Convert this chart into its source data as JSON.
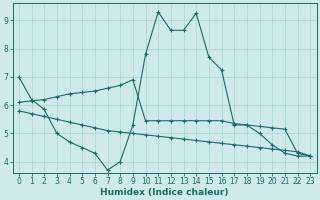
{
  "title": "",
  "xlabel": "Humidex (Indice chaleur)",
  "ylabel": "",
  "bg_color": "#ceeaea",
  "line_color": "#1a6b6b",
  "grid_color": "#b0d8d8",
  "xlim": [
    -0.5,
    23.5
  ],
  "ylim": [
    3.6,
    9.6
  ],
  "xticks": [
    0,
    1,
    2,
    3,
    4,
    5,
    6,
    7,
    8,
    9,
    10,
    11,
    12,
    13,
    14,
    15,
    16,
    17,
    18,
    19,
    20,
    21,
    22,
    23
  ],
  "yticks": [
    4,
    5,
    6,
    7,
    8,
    9
  ],
  "line1_x": [
    0,
    1,
    2,
    3,
    4,
    5,
    6,
    7,
    8,
    9,
    10,
    11,
    12,
    13,
    14,
    15,
    16,
    17,
    18,
    19,
    20,
    21,
    22,
    23
  ],
  "line1_y": [
    7.0,
    6.2,
    5.85,
    5.0,
    4.7,
    4.5,
    4.3,
    3.7,
    4.0,
    5.3,
    7.8,
    9.3,
    8.65,
    8.65,
    9.25,
    7.7,
    7.25,
    5.3,
    5.3,
    5.0,
    4.6,
    4.3,
    4.2,
    4.2
  ],
  "line2_x": [
    0,
    1,
    2,
    3,
    4,
    5,
    6,
    7,
    8,
    9,
    10,
    11,
    12,
    13,
    14,
    15,
    16,
    17,
    18,
    19,
    20,
    21,
    22,
    23
  ],
  "line2_y": [
    6.1,
    6.15,
    6.2,
    6.3,
    6.4,
    6.45,
    6.5,
    6.6,
    6.7,
    6.9,
    5.45,
    5.45,
    5.45,
    5.45,
    5.45,
    5.45,
    5.45,
    5.35,
    5.3,
    5.25,
    5.2,
    5.15,
    4.3,
    4.2
  ],
  "line3_x": [
    0,
    1,
    2,
    3,
    4,
    5,
    6,
    7,
    8,
    9,
    10,
    11,
    12,
    13,
    14,
    15,
    16,
    17,
    18,
    19,
    20,
    21,
    22,
    23
  ],
  "line3_y": [
    5.8,
    5.7,
    5.6,
    5.5,
    5.4,
    5.3,
    5.2,
    5.1,
    5.05,
    5.0,
    4.95,
    4.9,
    4.85,
    4.8,
    4.75,
    4.7,
    4.65,
    4.6,
    4.55,
    4.5,
    4.45,
    4.4,
    4.35,
    4.2
  ]
}
